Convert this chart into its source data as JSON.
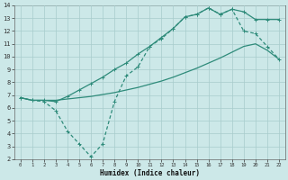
{
  "xlabel": "Humidex (Indice chaleur)",
  "background_color": "#cce8e8",
  "grid_color": "#a8cccc",
  "line_color": "#2e8b7a",
  "xlim": [
    -0.5,
    22.5
  ],
  "ylim": [
    2,
    14
  ],
  "xticks": [
    0,
    1,
    2,
    3,
    4,
    5,
    6,
    7,
    8,
    9,
    10,
    11,
    12,
    13,
    14,
    15,
    16,
    17,
    18,
    19,
    20,
    21,
    22
  ],
  "yticks": [
    2,
    3,
    4,
    5,
    6,
    7,
    8,
    9,
    10,
    11,
    12,
    13,
    14
  ],
  "line1_x": [
    0,
    1,
    2,
    3,
    4,
    5,
    6,
    7,
    8,
    9,
    10,
    11,
    12,
    13,
    14,
    15,
    16,
    17,
    18,
    19,
    20,
    21,
    22
  ],
  "line1_y": [
    6.8,
    6.6,
    6.6,
    6.6,
    6.7,
    6.8,
    6.9,
    7.05,
    7.2,
    7.4,
    7.6,
    7.85,
    8.1,
    8.4,
    8.75,
    9.1,
    9.5,
    9.9,
    10.35,
    10.8,
    11.0,
    10.5,
    9.8
  ],
  "line2_x": [
    0,
    1,
    2,
    3,
    4,
    5,
    6,
    7,
    8,
    9,
    10,
    11,
    12,
    13,
    14,
    15,
    16,
    17,
    18,
    19,
    20,
    21,
    22
  ],
  "line2_y": [
    6.8,
    6.6,
    6.6,
    6.5,
    6.9,
    7.4,
    7.9,
    8.4,
    9.0,
    9.5,
    10.2,
    10.8,
    11.5,
    12.2,
    13.1,
    13.3,
    13.8,
    13.3,
    13.7,
    13.5,
    12.9,
    12.9,
    12.9
  ],
  "line3_x": [
    0,
    1,
    2,
    3,
    4,
    5,
    6,
    7,
    8,
    9,
    10,
    11,
    12,
    13,
    14,
    15,
    16,
    17,
    18,
    19,
    20,
    21,
    22
  ],
  "line3_y": [
    6.8,
    6.6,
    6.5,
    5.8,
    4.2,
    3.2,
    2.2,
    3.2,
    6.5,
    8.5,
    9.2,
    10.8,
    11.4,
    12.2,
    13.1,
    13.3,
    13.8,
    13.3,
    13.7,
    12.0,
    11.8,
    10.8,
    9.8
  ]
}
